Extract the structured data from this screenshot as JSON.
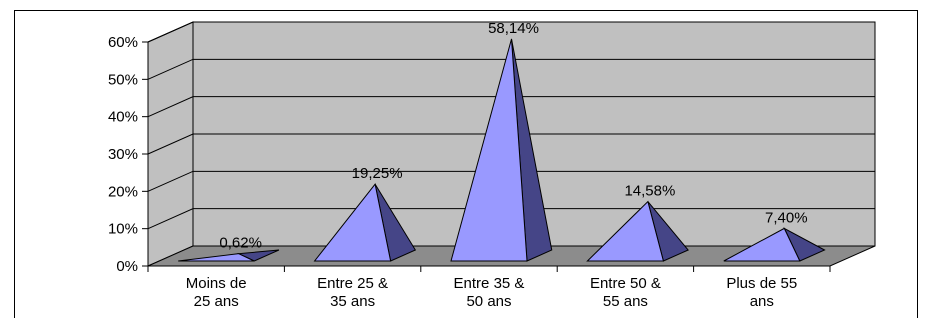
{
  "chart_data": {
    "type": "bar",
    "style": "3d-pyramid",
    "categories": [
      [
        "Moins de",
        "25 ans"
      ],
      [
        "Entre 25 &",
        "35 ans"
      ],
      [
        "Entre 35 &",
        "50 ans"
      ],
      [
        "Entre 50 &",
        "55 ans"
      ],
      [
        "Plus de 55",
        "ans"
      ]
    ],
    "values": [
      0.62,
      19.25,
      58.14,
      14.58,
      7.4
    ],
    "data_labels": [
      "0,62%",
      "19,25%",
      "58,14%",
      "14,58%",
      "7,40%"
    ],
    "yticks": [
      "0%",
      "10%",
      "20%",
      "30%",
      "40%",
      "50%",
      "60%"
    ],
    "ylim": [
      0,
      60
    ],
    "grid": true,
    "legend": "none",
    "colors": {
      "wall": "#c0c0c0",
      "floor": "#8c8c8c",
      "pyramid_front": "#9999ff",
      "pyramid_side": "#454587",
      "gridline": "#000000"
    }
  }
}
